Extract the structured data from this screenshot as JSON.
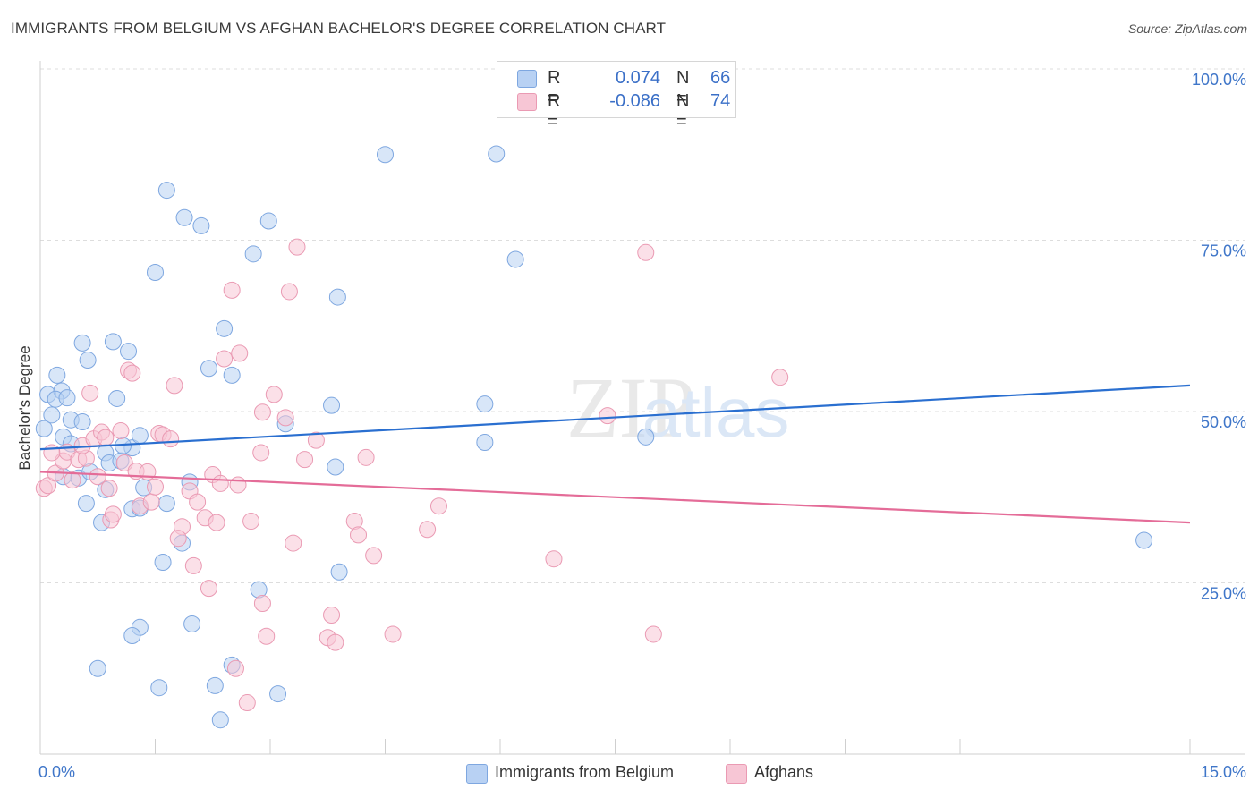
{
  "title": "IMMIGRANTS FROM BELGIUM VS AFGHAN BACHELOR'S DEGREE CORRELATION CHART",
  "source": "Source: ZipAtlas.com",
  "watermark": {
    "zip": "ZIP",
    "atlas": "atlas"
  },
  "legend": {
    "r_label": "R =",
    "n_label": "N =",
    "rows": [
      {
        "r": "0.074",
        "n": "66"
      },
      {
        "r": "-0.086",
        "n": "74"
      }
    ]
  },
  "colors": {
    "blue_fill": "#b8d1f3",
    "blue_stroke": "#7ea7e0",
    "blue_line": "#2a6fd0",
    "pink_fill": "#f7c6d5",
    "pink_stroke": "#ea9ab3",
    "pink_line": "#e46c98",
    "tick_label": "#3f76c9",
    "grid": "#dddddd"
  },
  "chart_data": {
    "type": "scatter",
    "title": "IMMIGRANTS FROM BELGIUM VS AFGHAN BACHELOR'S DEGREE CORRELATION CHART",
    "xlabel": "",
    "ylabel": "Bachelor's Degree",
    "xlim": [
      0,
      15
    ],
    "ylim": [
      0,
      100
    ],
    "x_tick_labels": [
      "0.0%",
      "15.0%"
    ],
    "y_ticks": [
      25,
      50,
      75,
      100
    ],
    "y_tick_labels": [
      "25.0%",
      "50.0%",
      "75.0%",
      "100.0%"
    ],
    "series": [
      {
        "name": "Immigrants from Belgium",
        "r": 0.074,
        "n": 66,
        "trend": {
          "x": [
            0,
            15
          ],
          "y": [
            44.5,
            53.8
          ]
        },
        "points": [
          [
            0.05,
            47.5
          ],
          [
            0.1,
            52.5
          ],
          [
            0.15,
            49.5
          ],
          [
            0.22,
            55.3
          ],
          [
            0.28,
            53
          ],
          [
            0.2,
            51.8
          ],
          [
            0.35,
            52
          ],
          [
            0.4,
            48.8
          ],
          [
            0.55,
            48.5
          ],
          [
            0.3,
            46.3
          ],
          [
            0.62,
            57.5
          ],
          [
            0.55,
            60
          ],
          [
            0.95,
            60.2
          ],
          [
            1.15,
            58.8
          ],
          [
            1.0,
            51.9
          ],
          [
            0.5,
            40.3
          ],
          [
            0.65,
            41.2
          ],
          [
            0.85,
            44
          ],
          [
            0.9,
            42.5
          ],
          [
            1.05,
            42.8
          ],
          [
            1.2,
            44.7
          ],
          [
            1.08,
            45
          ],
          [
            1.3,
            46.5
          ],
          [
            0.6,
            36.6
          ],
          [
            0.8,
            33.8
          ],
          [
            0.85,
            38.6
          ],
          [
            1.35,
            38.9
          ],
          [
            1.2,
            35.8
          ],
          [
            1.3,
            35.9
          ],
          [
            1.65,
            36.6
          ],
          [
            1.95,
            39.7
          ],
          [
            1.85,
            30.8
          ],
          [
            1.6,
            28
          ],
          [
            2.2,
            56.3
          ],
          [
            2.5,
            55.3
          ],
          [
            2.4,
            62.1
          ],
          [
            1.5,
            70.3
          ],
          [
            1.65,
            82.3
          ],
          [
            1.88,
            78.3
          ],
          [
            2.1,
            77.1
          ],
          [
            2.78,
            73
          ],
          [
            2.98,
            77.8
          ],
          [
            3.2,
            48.2
          ],
          [
            3.8,
            50.9
          ],
          [
            3.85,
            41.9
          ],
          [
            3.9,
            26.6
          ],
          [
            3.88,
            66.7
          ],
          [
            4.5,
            87.5
          ],
          [
            5.8,
            51.1
          ],
          [
            5.8,
            45.5
          ],
          [
            5.95,
            87.6
          ],
          [
            6.2,
            72.2
          ],
          [
            7.9,
            46.3
          ],
          [
            1.3,
            18.5
          ],
          [
            1.2,
            17.3
          ],
          [
            1.55,
            9.7
          ],
          [
            0.75,
            12.5
          ],
          [
            1.98,
            19
          ],
          [
            2.28,
            10
          ],
          [
            2.5,
            13
          ],
          [
            2.35,
            5
          ],
          [
            2.85,
            24
          ],
          [
            3.1,
            8.8
          ],
          [
            14.4,
            31.2
          ],
          [
            0.3,
            40.5
          ],
          [
            0.4,
            45.3
          ]
        ]
      },
      {
        "name": "Afghans",
        "r": -0.086,
        "n": 74,
        "trend": {
          "x": [
            0,
            15
          ],
          "y": [
            41.2,
            33.8
          ]
        },
        "points": [
          [
            0.05,
            38.8
          ],
          [
            0.1,
            39.2
          ],
          [
            0.2,
            41
          ],
          [
            0.3,
            42.8
          ],
          [
            0.35,
            44.1
          ],
          [
            0.42,
            40
          ],
          [
            0.5,
            43
          ],
          [
            0.6,
            43.2
          ],
          [
            0.55,
            45
          ],
          [
            0.7,
            46
          ],
          [
            0.8,
            47
          ],
          [
            0.85,
            46.2
          ],
          [
            0.65,
            52.7
          ],
          [
            0.9,
            38.8
          ],
          [
            0.92,
            34.2
          ],
          [
            0.95,
            35
          ],
          [
            1.1,
            42.5
          ],
          [
            1.25,
            41.3
          ],
          [
            1.15,
            56
          ],
          [
            1.2,
            55.6
          ],
          [
            1.3,
            36.2
          ],
          [
            1.45,
            36.8
          ],
          [
            1.5,
            39
          ],
          [
            1.55,
            46.8
          ],
          [
            1.6,
            46.6
          ],
          [
            1.7,
            46
          ],
          [
            1.75,
            53.8
          ],
          [
            1.85,
            33.2
          ],
          [
            1.8,
            31.5
          ],
          [
            1.95,
            38.4
          ],
          [
            2.05,
            36.8
          ],
          [
            2.0,
            27.5
          ],
          [
            2.15,
            34.5
          ],
          [
            2.25,
            40.8
          ],
          [
            2.2,
            24.2
          ],
          [
            2.3,
            33.8
          ],
          [
            2.4,
            57.7
          ],
          [
            2.5,
            67.7
          ],
          [
            2.6,
            58.5
          ],
          [
            2.58,
            39.3
          ],
          [
            2.75,
            34
          ],
          [
            2.88,
            44
          ],
          [
            2.9,
            49.9
          ],
          [
            3.05,
            52.5
          ],
          [
            3.2,
            49.1
          ],
          [
            3.25,
            67.5
          ],
          [
            3.3,
            30.8
          ],
          [
            3.35,
            74
          ],
          [
            3.45,
            43
          ],
          [
            3.6,
            45.8
          ],
          [
            3.75,
            17
          ],
          [
            3.8,
            20.3
          ],
          [
            3.85,
            16.3
          ],
          [
            4.1,
            34
          ],
          [
            4.15,
            32
          ],
          [
            4.25,
            43.3
          ],
          [
            4.35,
            29
          ],
          [
            4.6,
            17.5
          ],
          [
            5.05,
            32.8
          ],
          [
            5.2,
            36.2
          ],
          [
            6.7,
            28.5
          ],
          [
            7.4,
            49.4
          ],
          [
            7.9,
            73.2
          ],
          [
            8.0,
            17.5
          ],
          [
            9.65,
            55
          ],
          [
            2.55,
            12.5
          ],
          [
            2.7,
            7.5
          ],
          [
            2.9,
            22
          ],
          [
            2.95,
            17.2
          ],
          [
            1.4,
            41.2
          ],
          [
            1.05,
            47.2
          ],
          [
            0.15,
            44
          ],
          [
            0.75,
            40.5
          ],
          [
            2.35,
            39.5
          ]
        ]
      }
    ]
  },
  "bottom_legend": [
    "Immigrants from Belgium",
    "Afghans"
  ]
}
